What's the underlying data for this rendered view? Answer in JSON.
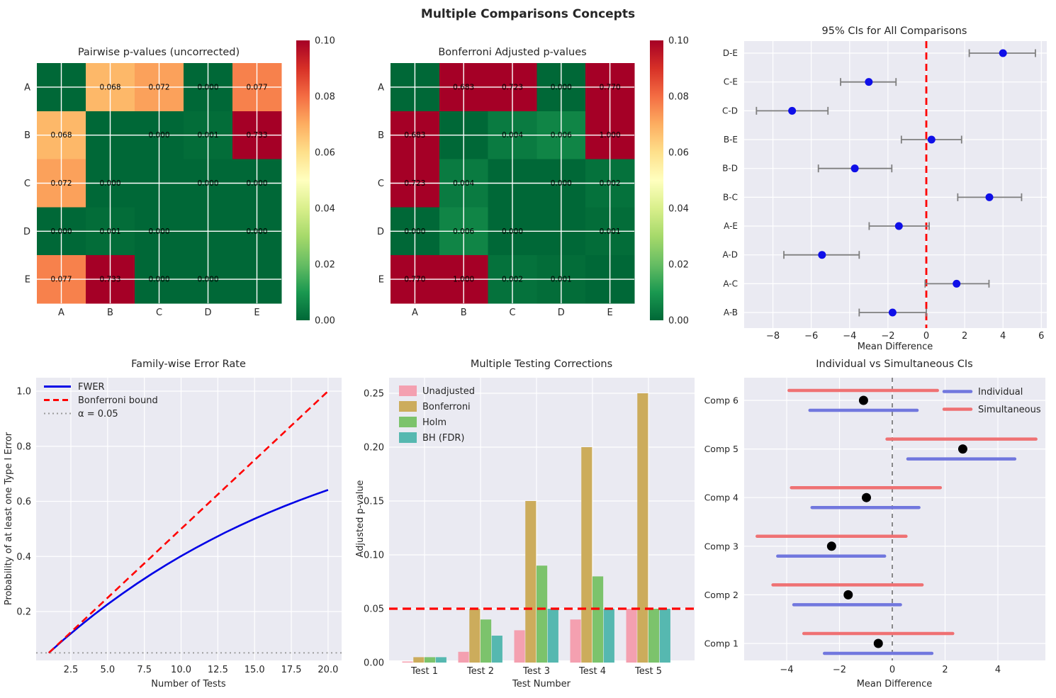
{
  "figure": {
    "title": "Multiple Comparisons Concepts",
    "background": "#ffffff",
    "axes_background": "#eaeaf2",
    "grid_color": "#ffffff",
    "text_color": "#262626"
  },
  "chart_data": [
    {
      "type": "heatmap",
      "title": "Pairwise p-values (uncorrected)",
      "row_labels": [
        "A",
        "B",
        "C",
        "D",
        "E"
      ],
      "col_labels": [
        "A",
        "B",
        "C",
        "D",
        "E"
      ],
      "values": [
        [
          null,
          0.068,
          0.072,
          0.0,
          0.077
        ],
        [
          0.068,
          null,
          0.0,
          0.001,
          0.733
        ],
        [
          0.072,
          0.0,
          null,
          0.0,
          0.0
        ],
        [
          0.0,
          0.001,
          0.0,
          null,
          0.0
        ],
        [
          0.077,
          0.733,
          0.0,
          0.0,
          null
        ]
      ],
      "annotations": [
        [
          "",
          "0.068",
          "0.072",
          "0.000",
          "0.077"
        ],
        [
          "0.068",
          "",
          "0.000",
          "0.001",
          "0.733"
        ],
        [
          "0.072",
          "0.000",
          "",
          "0.000",
          "0.000"
        ],
        [
          "0.000",
          "0.001",
          "0.000",
          "",
          "0.000"
        ],
        [
          "0.077",
          "0.733",
          "0.000",
          "0.000",
          ""
        ]
      ],
      "vmin": 0.0,
      "vmax": 0.1,
      "colormap": "RdYlGn_r",
      "colorbar_tick_labels": [
        "0.10",
        "0.08",
        "0.06",
        "0.04",
        "0.02",
        "0.00"
      ]
    },
    {
      "type": "heatmap",
      "title": "Bonferroni Adjusted p-values",
      "row_labels": [
        "A",
        "B",
        "C",
        "D",
        "E"
      ],
      "col_labels": [
        "A",
        "B",
        "C",
        "D",
        "E"
      ],
      "values": [
        [
          null,
          0.683,
          0.723,
          0.0,
          0.77
        ],
        [
          0.683,
          null,
          0.004,
          0.006,
          1.0
        ],
        [
          0.723,
          0.004,
          null,
          0.0,
          0.002
        ],
        [
          0.0,
          0.006,
          0.0,
          null,
          0.001
        ],
        [
          0.77,
          1.0,
          0.002,
          0.001,
          null
        ]
      ],
      "annotations": [
        [
          "",
          "0.683",
          "0.723",
          "0.000",
          "0.770"
        ],
        [
          "0.683",
          "",
          "0.004",
          "0.006",
          "1.000"
        ],
        [
          "0.723",
          "0.004",
          "",
          "0.000",
          "0.002"
        ],
        [
          "0.000",
          "0.006",
          "0.000",
          "",
          "0.001"
        ],
        [
          "0.770",
          "1.000",
          "0.002",
          "0.001",
          ""
        ]
      ],
      "vmin": 0.0,
      "vmax": 0.1,
      "colormap": "RdYlGn_r",
      "colorbar_tick_labels": [
        "0.10",
        "0.08",
        "0.06",
        "0.04",
        "0.02",
        "0.00"
      ]
    },
    {
      "type": "ci",
      "title": "95% CIs for All Comparisons",
      "xlabel": "Mean Difference",
      "x_ticks": [
        -8,
        -6,
        -4,
        -2,
        0,
        2,
        4,
        6
      ],
      "x_tick_labels": [
        "−8",
        "−6",
        "−4",
        "−2",
        "0",
        "2",
        "4",
        "6"
      ],
      "x_range": [
        -9.6,
        6.3
      ],
      "vline": 0,
      "vline_color": "#ff0000",
      "marker_color": "#0f0fe8",
      "errorbar_color": "#7f7f7f",
      "rows_top_to_bottom": [
        {
          "label": "D-E",
          "mean": 4.0,
          "lo": 2.24,
          "hi": 5.69
        },
        {
          "label": "C-E",
          "mean": -3.0,
          "lo": -4.47,
          "hi": -1.58
        },
        {
          "label": "C-D",
          "mean": -7.0,
          "lo": -8.86,
          "hi": -5.13
        },
        {
          "label": "B-E",
          "mean": 0.27,
          "lo": -1.3,
          "hi": 1.84
        },
        {
          "label": "B-D",
          "mean": -3.73,
          "lo": -5.63,
          "hi": -1.8
        },
        {
          "label": "B-C",
          "mean": 3.29,
          "lo": 1.64,
          "hi": 4.97
        },
        {
          "label": "A-E",
          "mean": -1.43,
          "lo": -2.98,
          "hi": 0.15
        },
        {
          "label": "A-D",
          "mean": -5.44,
          "lo": -7.43,
          "hi": -3.5
        },
        {
          "label": "A-C",
          "mean": 1.58,
          "lo": -0.06,
          "hi": 3.27
        },
        {
          "label": "A-B",
          "mean": -1.76,
          "lo": -3.5,
          "hi": 0.0
        }
      ]
    },
    {
      "type": "line",
      "title": "Family-wise Error Rate",
      "xlabel": "Number of Tests",
      "ylabel": "Probability of at least one Type I Error",
      "x_ticks": [
        2.5,
        5.0,
        7.5,
        10.0,
        12.5,
        15.0,
        17.5,
        20.0
      ],
      "x_tick_labels": [
        "2.5",
        "5.0",
        "7.5",
        "10.0",
        "12.5",
        "15.0",
        "17.5",
        "20.0"
      ],
      "y_ticks": [
        0.2,
        0.4,
        0.6,
        0.8,
        1.0
      ],
      "y_tick_labels": [
        "0.2",
        "0.4",
        "0.6",
        "0.8",
        "1.0"
      ],
      "series": [
        {
          "name": "FWER",
          "color": "#0000e6",
          "style": "solid",
          "x": [
            1,
            2,
            3,
            4,
            5,
            6,
            7,
            8,
            9,
            10,
            11,
            12,
            13,
            14,
            15,
            16,
            17,
            18,
            19,
            20
          ],
          "y": [
            0.05,
            0.0975,
            0.1426,
            0.1855,
            0.2262,
            0.2649,
            0.3017,
            0.3366,
            0.3698,
            0.4013,
            0.4312,
            0.4596,
            0.4867,
            0.5123,
            0.5367,
            0.5599,
            0.5819,
            0.6028,
            0.6226,
            0.6415
          ]
        },
        {
          "name": "Bonferroni bound",
          "color": "#ff0000",
          "style": "dashed",
          "x": [
            1,
            2,
            3,
            4,
            5,
            6,
            7,
            8,
            9,
            10,
            11,
            12,
            13,
            14,
            15,
            16,
            17,
            18,
            19,
            20
          ],
          "y": [
            0.05,
            0.1,
            0.15,
            0.2,
            0.25,
            0.3,
            0.35,
            0.4,
            0.45,
            0.5,
            0.55,
            0.6,
            0.65,
            0.7,
            0.75,
            0.8,
            0.85,
            0.9,
            0.95,
            1.0
          ]
        },
        {
          "name": "α = 0.05",
          "color": "#999999",
          "style": "dotted",
          "hline": 0.05
        }
      ],
      "legend_position": "upper left"
    },
    {
      "type": "bar",
      "title": "Multiple Testing Corrections",
      "xlabel": "Test Number",
      "ylabel": "Adjusted p-value",
      "categories": [
        "Test 1",
        "Test 2",
        "Test 3",
        "Test 4",
        "Test 5"
      ],
      "series": [
        {
          "name": "Unadjusted",
          "color": "#f4a0b0",
          "values": [
            0.001,
            0.01,
            0.03,
            0.04,
            0.05
          ]
        },
        {
          "name": "Bonferroni",
          "color": "#ccac5c",
          "values": [
            0.005,
            0.05,
            0.15,
            0.2,
            0.25
          ]
        },
        {
          "name": "Holm",
          "color": "#7cc36c",
          "values": [
            0.005,
            0.04,
            0.09,
            0.08,
            0.05
          ]
        },
        {
          "name": "BH (FDR)",
          "color": "#56b8b0",
          "values": [
            0.005,
            0.025,
            0.05,
            0.05,
            0.05
          ]
        }
      ],
      "y_ticks": [
        0.0,
        0.05,
        0.1,
        0.15,
        0.2,
        0.25
      ],
      "y_tick_labels": [
        "0.00",
        "0.05",
        "0.10",
        "0.15",
        "0.20",
        "0.25"
      ],
      "hline": {
        "value": 0.05,
        "color": "#ff0000",
        "style": "dashed"
      },
      "legend_position": "upper left"
    },
    {
      "type": "dual_ci",
      "title": "Individual vs Simultaneous CIs",
      "xlabel": "Mean Difference",
      "x_ticks": [
        -4,
        -2,
        0,
        2,
        4
      ],
      "x_tick_labels": [
        "−4",
        "−2",
        "0",
        "2",
        "4"
      ],
      "x_range": [
        -5.6,
        5.8
      ],
      "vline": 0,
      "vline_color": "#666666",
      "colors": {
        "individual": "#7177de",
        "simultaneous": "#ef7173",
        "center": "#000000"
      },
      "legend": [
        "Individual",
        "Simultaneous"
      ],
      "rows_bottom_to_top": [
        {
          "label": "Comp 1",
          "center": -0.53,
          "individual": [
            -2.57,
            1.5
          ],
          "simultaneous": [
            -3.35,
            2.29
          ]
        },
        {
          "label": "Comp 2",
          "center": -1.67,
          "individual": [
            -3.73,
            0.31
          ],
          "simultaneous": [
            -4.52,
            1.13
          ]
        },
        {
          "label": "Comp 3",
          "center": -2.3,
          "individual": [
            -4.34,
            -0.29
          ],
          "simultaneous": [
            -5.12,
            0.52
          ]
        },
        {
          "label": "Comp 4",
          "center": -0.98,
          "individual": [
            -3.04,
            1.01
          ],
          "simultaneous": [
            -3.82,
            1.82
          ]
        },
        {
          "label": "Comp 5",
          "center": 2.67,
          "individual": [
            0.59,
            4.64
          ],
          "simultaneous": [
            -0.2,
            5.44
          ]
        },
        {
          "label": "Comp 6",
          "center": -1.09,
          "individual": [
            -3.12,
            0.94
          ],
          "simultaneous": [
            -3.91,
            1.71
          ]
        }
      ]
    }
  ]
}
